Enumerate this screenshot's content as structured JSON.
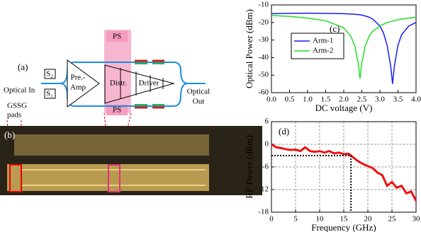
{
  "diagram": {
    "panel_a": "(a)",
    "panel_b": "(b)",
    "optical_in": "Optical In",
    "s1": "S₁",
    "s2": "S₂",
    "preamp_1": "Pre.-",
    "preamp_2": "Amp",
    "distr": "Distr.",
    "driver": "Driver",
    "ps_top": "PS",
    "ps_bottom": "PS",
    "optical_out_1": "Optical",
    "optical_out_2": "Out",
    "gssg_1": "GSSG",
    "gssg_2": "pads"
  },
  "chart_data": [
    {
      "type": "line",
      "panel": "(c)",
      "x_label": "DC voltage (V)",
      "y_label": "Optical Power (dBm)",
      "x": [
        0,
        0.5,
        1,
        1.5,
        2,
        2.2,
        2.3,
        2.4,
        2.45,
        2.5,
        2.6,
        2.7,
        2.8,
        3,
        3.1,
        3.2,
        3.3,
        3.35,
        3.4,
        3.5,
        3.6,
        3.8,
        4
      ],
      "series": [
        {
          "name": "Arm-1",
          "color": "#1a1aff",
          "values": [
            -15,
            -14.8,
            -14.7,
            -14.8,
            -15,
            -15.2,
            -15.3,
            -15.5,
            -15.6,
            -15.8,
            -16.3,
            -17,
            -18,
            -22,
            -26,
            -33,
            -45,
            -55,
            -45,
            -33,
            -27,
            -22,
            -20
          ]
        },
        {
          "name": "Arm-2",
          "color": "#22dd22",
          "values": [
            -16,
            -16.5,
            -17.5,
            -19,
            -23,
            -28,
            -33,
            -43,
            -52,
            -43,
            -33,
            -28,
            -25,
            -22,
            -21,
            -20,
            -19.5,
            -19.2,
            -19,
            -18.5,
            -18,
            -17.5,
            -17
          ]
        }
      ],
      "xlim": [
        0,
        4
      ],
      "xticks": [
        {
          "value": 0,
          "label": "0.0"
        },
        {
          "value": 0.5,
          "label": "0.5"
        },
        {
          "value": 1,
          "label": "1.0"
        },
        {
          "value": 1.5,
          "label": "1.5"
        },
        {
          "value": 2,
          "label": "2.0"
        },
        {
          "value": 2.5,
          "label": "2.5"
        },
        {
          "value": 3,
          "label": "3.0"
        },
        {
          "value": 3.5,
          "label": "3.5"
        },
        {
          "value": 4,
          "label": "4.0"
        }
      ],
      "ylim": [
        -60,
        -10
      ],
      "yticks": [
        -10,
        -20,
        -30,
        -40,
        -50,
        -60
      ],
      "grid": false,
      "legend": "left"
    },
    {
      "type": "line",
      "panel": "(d)",
      "x_label": "Frequency (GHz)",
      "y_label": "RF Power (dBm)",
      "x": [
        0,
        1,
        2,
        3,
        4,
        5,
        6,
        7,
        8,
        9,
        10,
        11,
        12,
        13,
        14,
        15,
        16,
        17,
        18,
        19,
        20,
        21,
        22,
        23,
        24,
        25,
        26,
        27,
        28,
        29,
        30
      ],
      "series": [
        {
          "color": "#ee1111",
          "values": [
            0,
            -0.8,
            -1,
            -1.3,
            -1.5,
            -1.4,
            -1.8,
            -0.8,
            -1.8,
            -2,
            -1.8,
            -2.2,
            -1.8,
            -2.4,
            -2.2,
            -2.6,
            -2.5,
            -3.5,
            -4.5,
            -5.2,
            -5.8,
            -6.3,
            -7.5,
            -8.2,
            -11,
            -10,
            -11.5,
            -11,
            -13,
            -12.5,
            -15
          ]
        }
      ],
      "xlim": [
        0,
        30
      ],
      "xticks": [
        0,
        5,
        10,
        15,
        20,
        25,
        30
      ],
      "ylim": [
        -18,
        6
      ],
      "yticks": [
        6,
        0,
        -6,
        -12,
        -18
      ],
      "grid": true,
      "reference": {
        "x": 16.5,
        "y": -3
      }
    }
  ]
}
